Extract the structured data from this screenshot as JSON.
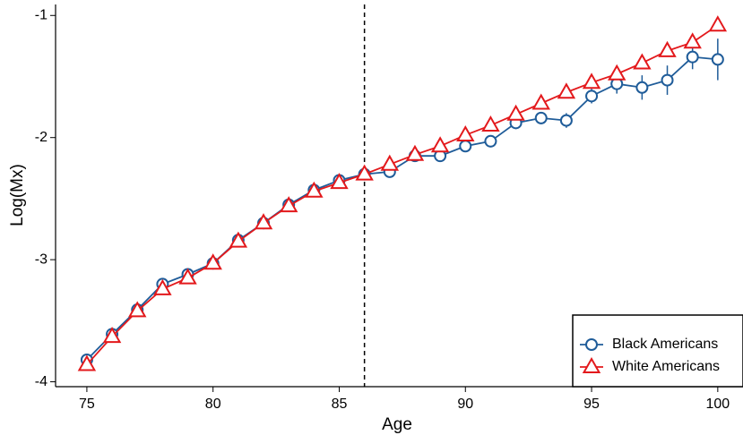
{
  "chart_data": {
    "type": "line",
    "x_label": "Age",
    "y_label": "Log(Mx)",
    "x": [
      75,
      76,
      77,
      78,
      79,
      80,
      81,
      82,
      83,
      84,
      85,
      86,
      87,
      88,
      89,
      90,
      91,
      92,
      93,
      94,
      95,
      96,
      97,
      98,
      99,
      100
    ],
    "series": [
      {
        "name": "Black Americans",
        "color": "#1f5c99",
        "marker": "circle",
        "values": [
          -3.82,
          -3.61,
          -3.41,
          -3.2,
          -3.12,
          -3.03,
          -2.84,
          -2.7,
          -2.55,
          -2.43,
          -2.35,
          -2.3,
          -2.28,
          -2.15,
          -2.15,
          -2.07,
          -2.03,
          -1.88,
          -1.84,
          -1.86,
          -1.66,
          -1.56,
          -1.59,
          -1.53,
          -1.34,
          -1.36
        ],
        "errors": [
          0.04,
          0.03,
          0.03,
          0.03,
          0.03,
          0.03,
          0.03,
          0.03,
          0.03,
          0.03,
          0.03,
          0.03,
          0.03,
          0.03,
          0.04,
          0.04,
          0.05,
          0.05,
          0.05,
          0.06,
          0.06,
          0.08,
          0.1,
          0.12,
          0.1,
          0.17
        ]
      },
      {
        "name": "White Americans",
        "color": "#e3191c",
        "marker": "triangle",
        "values": [
          -3.86,
          -3.63,
          -3.42,
          -3.24,
          -3.15,
          -3.03,
          -2.85,
          -2.7,
          -2.56,
          -2.44,
          -2.37,
          -2.3,
          -2.22,
          -2.14,
          -2.07,
          -1.98,
          -1.9,
          -1.81,
          -1.72,
          -1.63,
          -1.55,
          -1.48,
          -1.39,
          -1.29,
          -1.22,
          -1.08
        ]
      }
    ],
    "vline": 86,
    "xlim": [
      73.76,
      101
    ],
    "xticks": [
      75,
      80,
      85,
      90,
      95,
      100
    ],
    "ylim": [
      -4.04,
      -0.91
    ],
    "yticks": [
      -1,
      -2,
      -3,
      -4
    ],
    "legend": "lower right",
    "grid": false
  }
}
